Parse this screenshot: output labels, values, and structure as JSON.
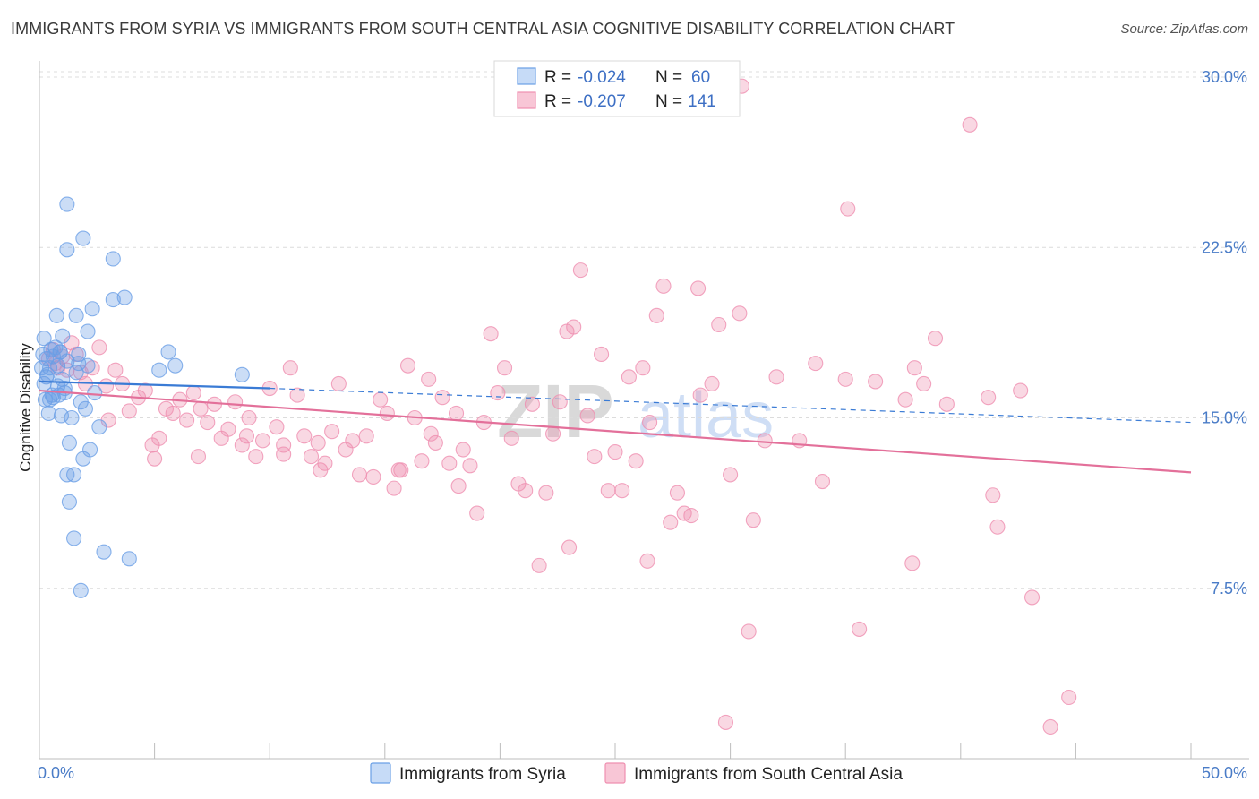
{
  "header": {
    "title": "IMMIGRANTS FROM SYRIA VS IMMIGRANTS FROM SOUTH CENTRAL ASIA COGNITIVE DISABILITY CORRELATION CHART",
    "source": "Source: ZipAtlas.com"
  },
  "watermark": {
    "zip": "ZIP",
    "atlas": "atlas"
  },
  "stats": {
    "syria": {
      "r_label": "R = ",
      "r_value": "-0.024",
      "n_label": "N = ",
      "n_value": "60"
    },
    "sca": {
      "r_label": "R = ",
      "r_value": "-0.207",
      "n_label": "N = ",
      "n_value": "141"
    }
  },
  "legend": {
    "syria": "Immigrants from Syria",
    "sca": "Immigrants from South Central Asia"
  },
  "chart_data": {
    "type": "scatter",
    "title": "IMMIGRANTS FROM SYRIA VS IMMIGRANTS FROM SOUTH CENTRAL ASIA COGNITIVE DISABILITY CORRELATION CHART",
    "xlabel": "",
    "ylabel": "Cognitive Disability",
    "xlim": [
      0,
      50
    ],
    "ylim": [
      0,
      30
    ],
    "x_ticks": [
      "0.0%",
      "50.0%"
    ],
    "y_ticks": [
      "7.5%",
      "15.0%",
      "22.5%",
      "30.0%"
    ],
    "y_tick_values": [
      7.5,
      15.0,
      22.5,
      30.0
    ],
    "grid": "horizontal dashed",
    "legend_position": "bottom-center",
    "colors": {
      "syria": "#6a9fe6",
      "sca": "#ef8fb0",
      "syria_line": "#3a7bd5",
      "sca_line": "#e3709a"
    },
    "series": [
      {
        "name": "Immigrants from Syria",
        "trend": {
          "x": [
            0,
            10,
            50
          ],
          "y": [
            16.6,
            16.3,
            14.8
          ]
        },
        "points": [
          [
            0.1,
            17.2
          ],
          [
            0.15,
            17.8
          ],
          [
            0.2,
            16.5
          ],
          [
            0.25,
            15.8
          ],
          [
            0.3,
            17.6
          ],
          [
            0.35,
            16.9
          ],
          [
            0.4,
            15.2
          ],
          [
            0.45,
            15.8
          ],
          [
            0.5,
            18.0
          ],
          [
            0.55,
            16.0
          ],
          [
            0.6,
            15.9
          ],
          [
            0.7,
            18.1
          ],
          [
            0.75,
            19.5
          ],
          [
            0.8,
            17.3
          ],
          [
            0.85,
            16.0
          ],
          [
            0.9,
            17.9
          ],
          [
            0.95,
            15.1
          ],
          [
            1.0,
            18.6
          ],
          [
            1.1,
            16.1
          ],
          [
            1.2,
            17.5
          ],
          [
            1.2,
            12.5
          ],
          [
            1.3,
            11.3
          ],
          [
            1.3,
            13.9
          ],
          [
            1.4,
            15.0
          ],
          [
            1.5,
            12.5
          ],
          [
            1.6,
            17.0
          ],
          [
            1.7,
            17.8
          ],
          [
            1.8,
            15.7
          ],
          [
            1.9,
            13.2
          ],
          [
            2.0,
            15.4
          ],
          [
            2.1,
            18.8
          ],
          [
            2.2,
            13.6
          ],
          [
            2.3,
            19.8
          ],
          [
            2.4,
            16.1
          ],
          [
            2.6,
            14.6
          ],
          [
            2.8,
            9.1
          ],
          [
            3.2,
            20.2
          ],
          [
            3.7,
            20.3
          ],
          [
            3.9,
            8.8
          ],
          [
            1.5,
            9.7
          ],
          [
            1.8,
            7.4
          ],
          [
            1.2,
            24.4
          ],
          [
            1.2,
            22.4
          ],
          [
            1.9,
            22.9
          ],
          [
            3.2,
            22.0
          ],
          [
            5.2,
            17.1
          ],
          [
            5.6,
            17.9
          ],
          [
            5.9,
            17.3
          ],
          [
            8.8,
            16.9
          ],
          [
            0.3,
            16.8
          ],
          [
            0.6,
            17.7
          ],
          [
            0.9,
            17.9
          ],
          [
            1.7,
            17.4
          ],
          [
            2.1,
            17.3
          ],
          [
            0.45,
            17.2
          ],
          [
            1.1,
            16.3
          ],
          [
            0.8,
            16.4
          ],
          [
            0.2,
            18.5
          ],
          [
            1.6,
            19.5
          ],
          [
            1.0,
            16.7
          ]
        ]
      },
      {
        "name": "Immigrants from South Central Asia",
        "trend": {
          "x": [
            0,
            50
          ],
          "y": [
            16.2,
            12.6
          ]
        },
        "points": [
          [
            0.4,
            17.6
          ],
          [
            0.6,
            18.0
          ],
          [
            0.8,
            17.2
          ],
          [
            1.0,
            17.7
          ],
          [
            1.2,
            17.1
          ],
          [
            1.4,
            18.3
          ],
          [
            1.6,
            17.8
          ],
          [
            1.8,
            17.0
          ],
          [
            2.0,
            16.5
          ],
          [
            2.3,
            17.2
          ],
          [
            2.6,
            18.1
          ],
          [
            2.9,
            16.4
          ],
          [
            3.3,
            17.1
          ],
          [
            3.6,
            16.5
          ],
          [
            3.9,
            15.3
          ],
          [
            4.3,
            15.9
          ],
          [
            4.6,
            16.2
          ],
          [
            4.9,
            13.8
          ],
          [
            5.2,
            14.1
          ],
          [
            5.5,
            15.4
          ],
          [
            5.8,
            15.2
          ],
          [
            6.1,
            15.8
          ],
          [
            6.4,
            14.9
          ],
          [
            6.7,
            16.1
          ],
          [
            7.0,
            15.4
          ],
          [
            7.3,
            14.8
          ],
          [
            7.6,
            15.6
          ],
          [
            7.9,
            14.1
          ],
          [
            8.2,
            14.5
          ],
          [
            8.5,
            15.7
          ],
          [
            8.8,
            13.8
          ],
          [
            9.1,
            15.0
          ],
          [
            9.4,
            13.3
          ],
          [
            9.7,
            14.0
          ],
          [
            10.0,
            16.3
          ],
          [
            10.3,
            14.6
          ],
          [
            10.6,
            13.8
          ],
          [
            10.9,
            17.2
          ],
          [
            11.2,
            16.0
          ],
          [
            11.5,
            14.2
          ],
          [
            11.8,
            13.3
          ],
          [
            12.1,
            13.9
          ],
          [
            12.4,
            13.0
          ],
          [
            12.7,
            14.4
          ],
          [
            13.0,
            16.5
          ],
          [
            13.3,
            13.6
          ],
          [
            13.6,
            14.0
          ],
          [
            13.9,
            12.5
          ],
          [
            14.2,
            14.2
          ],
          [
            14.5,
            12.4
          ],
          [
            14.8,
            15.8
          ],
          [
            15.1,
            15.2
          ],
          [
            15.4,
            11.9
          ],
          [
            15.7,
            12.7
          ],
          [
            16.0,
            17.3
          ],
          [
            16.3,
            15.0
          ],
          [
            16.6,
            13.1
          ],
          [
            16.9,
            16.7
          ],
          [
            17.2,
            13.9
          ],
          [
            17.5,
            15.9
          ],
          [
            17.8,
            13.0
          ],
          [
            18.1,
            15.2
          ],
          [
            18.4,
            13.6
          ],
          [
            18.7,
            12.9
          ],
          [
            19.0,
            10.8
          ],
          [
            19.3,
            14.8
          ],
          [
            19.6,
            18.7
          ],
          [
            19.9,
            16.1
          ],
          [
            20.2,
            17.2
          ],
          [
            20.5,
            14.1
          ],
          [
            20.8,
            12.1
          ],
          [
            21.1,
            11.8
          ],
          [
            21.4,
            15.6
          ],
          [
            21.7,
            8.5
          ],
          [
            22.0,
            11.7
          ],
          [
            22.3,
            14.3
          ],
          [
            22.6,
            15.7
          ],
          [
            22.9,
            18.8
          ],
          [
            23.2,
            19.0
          ],
          [
            23.5,
            21.5
          ],
          [
            23.8,
            15.1
          ],
          [
            24.1,
            13.3
          ],
          [
            24.4,
            17.8
          ],
          [
            24.7,
            11.8
          ],
          [
            25.0,
            13.5
          ],
          [
            25.3,
            11.8
          ],
          [
            25.6,
            16.8
          ],
          [
            25.9,
            13.1
          ],
          [
            26.2,
            17.2
          ],
          [
            26.5,
            14.8
          ],
          [
            26.8,
            19.5
          ],
          [
            27.1,
            20.8
          ],
          [
            27.4,
            10.4
          ],
          [
            27.7,
            11.7
          ],
          [
            28.0,
            10.8
          ],
          [
            28.3,
            10.7
          ],
          [
            28.6,
            20.7
          ],
          [
            29.2,
            16.5
          ],
          [
            29.5,
            19.1
          ],
          [
            30.0,
            12.5
          ],
          [
            30.4,
            19.6
          ],
          [
            31.0,
            10.5
          ],
          [
            31.5,
            14.0
          ],
          [
            32.0,
            16.8
          ],
          [
            33.0,
            14.0
          ],
          [
            33.7,
            17.4
          ],
          [
            34.0,
            12.2
          ],
          [
            35.1,
            24.2
          ],
          [
            35.0,
            16.7
          ],
          [
            36.3,
            16.6
          ],
          [
            37.6,
            15.8
          ],
          [
            38.0,
            17.2
          ],
          [
            38.4,
            16.5
          ],
          [
            38.9,
            18.5
          ],
          [
            39.4,
            15.6
          ],
          [
            41.2,
            15.9
          ],
          [
            41.4,
            11.6
          ],
          [
            41.6,
            10.2
          ],
          [
            42.6,
            16.2
          ],
          [
            43.1,
            7.1
          ],
          [
            37.9,
            8.6
          ],
          [
            35.6,
            5.7
          ],
          [
            29.8,
            1.6
          ],
          [
            40.4,
            27.9
          ],
          [
            30.5,
            29.6
          ],
          [
            43.9,
            1.4
          ],
          [
            44.7,
            2.7
          ],
          [
            23.0,
            9.3
          ],
          [
            30.8,
            5.6
          ],
          [
            18.2,
            12.0
          ],
          [
            9.0,
            14.2
          ],
          [
            3.0,
            14.9
          ],
          [
            5.0,
            13.2
          ],
          [
            6.9,
            13.3
          ],
          [
            10.6,
            13.4
          ],
          [
            12.2,
            12.7
          ],
          [
            28.7,
            16.0
          ],
          [
            26.4,
            8.7
          ],
          [
            17.0,
            14.3
          ],
          [
            15.6,
            12.7
          ],
          [
            0.7,
            17.4
          ]
        ]
      }
    ]
  }
}
